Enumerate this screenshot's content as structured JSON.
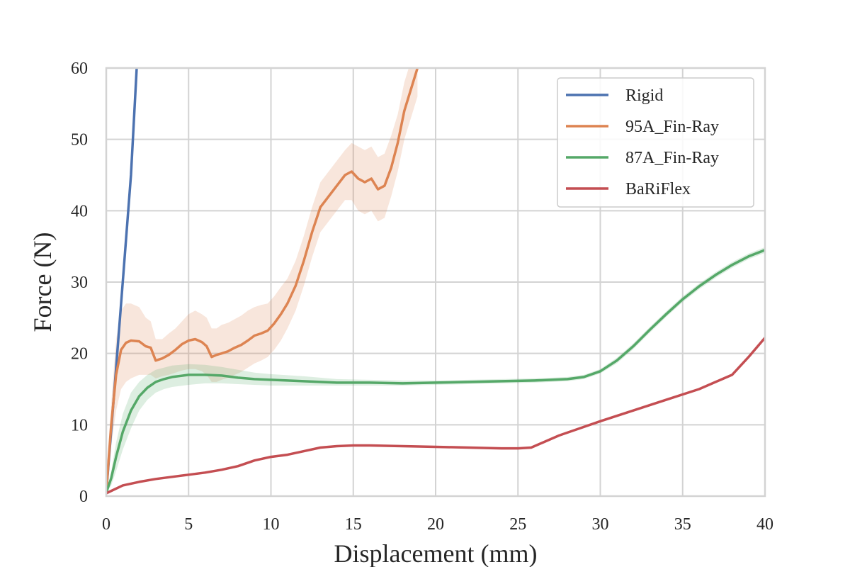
{
  "chart_data": {
    "type": "line",
    "title": "",
    "xlabel": "Displacement (mm)",
    "ylabel": "Force (N)",
    "xlim": [
      0,
      40
    ],
    "ylim": [
      0,
      60
    ],
    "xticks": [
      0,
      5,
      10,
      15,
      20,
      25,
      30,
      35,
      40
    ],
    "yticks": [
      0,
      10,
      20,
      30,
      40,
      50,
      60
    ],
    "grid": true,
    "legend_position": "top-right",
    "series": [
      {
        "name": "Rigid",
        "color": "#4c72b0",
        "x": [
          0,
          0.5,
          1.0,
          1.5,
          1.85
        ],
        "y": [
          0.5,
          15,
          30,
          45,
          60
        ]
      },
      {
        "name": "95A_Fin-Ray",
        "color": "#dd8452",
        "x": [
          0,
          0.3,
          0.6,
          0.9,
          1.2,
          1.5,
          2.0,
          2.4,
          2.7,
          3.0,
          3.4,
          3.8,
          4.2,
          4.6,
          5.0,
          5.4,
          5.8,
          6.1,
          6.4,
          6.7,
          7.0,
          7.4,
          7.8,
          8.2,
          8.6,
          9.0,
          9.4,
          9.8,
          10.2,
          10.6,
          11.0,
          11.5,
          12.0,
          12.5,
          13.0,
          13.5,
          14.0,
          14.5,
          14.9,
          15.3,
          15.7,
          16.1,
          16.5,
          16.9,
          17.3,
          17.7,
          18.1,
          18.5,
          18.9
        ],
        "y": [
          0.5,
          10,
          17,
          20.5,
          21.5,
          21.8,
          21.7,
          21.0,
          20.8,
          19.0,
          19.3,
          19.8,
          20.5,
          21.3,
          21.8,
          22.0,
          21.6,
          21.0,
          19.5,
          19.8,
          20.0,
          20.3,
          20.8,
          21.2,
          21.8,
          22.5,
          22.8,
          23.2,
          24.2,
          25.5,
          27.0,
          29.5,
          33.0,
          37.0,
          40.5,
          42.0,
          43.5,
          45.0,
          45.5,
          44.5,
          44.0,
          44.5,
          43.0,
          43.5,
          46.0,
          49.5,
          54.0,
          57.0,
          60.0
        ],
        "band_lower": [
          0.5,
          7,
          12,
          15,
          16,
          16.5,
          17,
          17,
          17,
          16.5,
          16.8,
          17,
          17.3,
          17.6,
          17.8,
          17.8,
          17.5,
          17,
          16,
          16,
          16.3,
          16.6,
          17,
          17.4,
          18,
          18.6,
          19,
          19.5,
          20.5,
          21.8,
          23.5,
          26,
          29.5,
          33.5,
          37,
          38.5,
          40,
          41.5,
          41.5,
          40,
          39.5,
          40,
          38.5,
          39,
          42,
          45.5,
          50,
          53,
          56
        ],
        "band_upper": [
          0.5,
          13,
          22,
          26,
          27,
          27,
          26.5,
          25,
          24.5,
          22,
          22,
          22.8,
          23.5,
          24.5,
          25.5,
          26,
          25.5,
          25,
          23.5,
          23.5,
          24,
          24.3,
          24.8,
          25.3,
          26,
          26.5,
          26.8,
          27,
          28,
          29.3,
          30.5,
          33,
          36.5,
          40.5,
          44,
          45.5,
          47,
          48.5,
          49.5,
          49,
          48.5,
          49,
          47.5,
          48,
          50.5,
          53.5,
          58,
          61,
          64
        ]
      },
      {
        "name": "87A_Fin-Ray",
        "color": "#55a868",
        "x": [
          0,
          0.3,
          0.6,
          1.0,
          1.5,
          2.0,
          2.5,
          3.0,
          3.5,
          4.0,
          5.0,
          6.0,
          7.0,
          8.0,
          9.0,
          10.0,
          12.0,
          14.0,
          16.0,
          18.0,
          20.0,
          22.0,
          24.0,
          26.0,
          28.0,
          29.0,
          30.0,
          31.0,
          32.0,
          33.0,
          34.0,
          35.0,
          36.0,
          37.0,
          38.0,
          39.0,
          40.0
        ],
        "y": [
          0.5,
          2.5,
          5.5,
          9.0,
          12.0,
          14.0,
          15.2,
          16.0,
          16.4,
          16.7,
          17.0,
          17.0,
          16.9,
          16.6,
          16.4,
          16.3,
          16.1,
          15.9,
          15.9,
          15.8,
          15.9,
          16.0,
          16.1,
          16.2,
          16.4,
          16.7,
          17.5,
          19.0,
          21.0,
          23.3,
          25.5,
          27.6,
          29.4,
          31.0,
          32.4,
          33.6,
          34.5
        ],
        "band_lower": [
          0.5,
          1.5,
          3.5,
          6.5,
          9.5,
          12.0,
          13.5,
          14.5,
          15.0,
          15.3,
          15.6,
          15.8,
          15.8,
          15.7,
          15.6,
          15.5,
          15.5,
          15.5,
          15.5,
          15.5,
          15.6,
          15.7,
          15.8,
          15.9,
          16.1,
          16.4,
          17.2,
          18.6,
          20.6,
          22.9,
          25.1,
          27.2,
          29.0,
          30.6,
          32.0,
          33.2,
          34.1
        ],
        "band_upper": [
          0.5,
          3.5,
          7.5,
          11.5,
          14.5,
          16.0,
          17.0,
          17.7,
          18.0,
          18.3,
          18.5,
          18.4,
          18.1,
          17.7,
          17.3,
          17.1,
          16.8,
          16.4,
          16.3,
          16.2,
          16.2,
          16.3,
          16.4,
          16.5,
          16.7,
          17.0,
          17.8,
          19.4,
          21.4,
          23.7,
          25.9,
          28.0,
          29.8,
          31.4,
          32.8,
          34.0,
          34.9
        ]
      },
      {
        "name": "BaRiFlex",
        "color": "#c44e52",
        "x": [
          0,
          1,
          2,
          3,
          4,
          5,
          6,
          7,
          8,
          9,
          10,
          11,
          12,
          13,
          14,
          15,
          16,
          18,
          20,
          22,
          24,
          25,
          25.8,
          26.5,
          27.5,
          28.5,
          30,
          32,
          34,
          36,
          37,
          38,
          39,
          40
        ],
        "y": [
          0.4,
          1.5,
          2.0,
          2.4,
          2.7,
          3.0,
          3.3,
          3.7,
          4.2,
          5.0,
          5.5,
          5.8,
          6.3,
          6.8,
          7.0,
          7.1,
          7.1,
          7.0,
          6.9,
          6.8,
          6.7,
          6.7,
          6.8,
          7.5,
          8.5,
          9.3,
          10.5,
          12.0,
          13.5,
          15.0,
          16.0,
          17.0,
          19.5,
          22.2
        ]
      }
    ]
  }
}
